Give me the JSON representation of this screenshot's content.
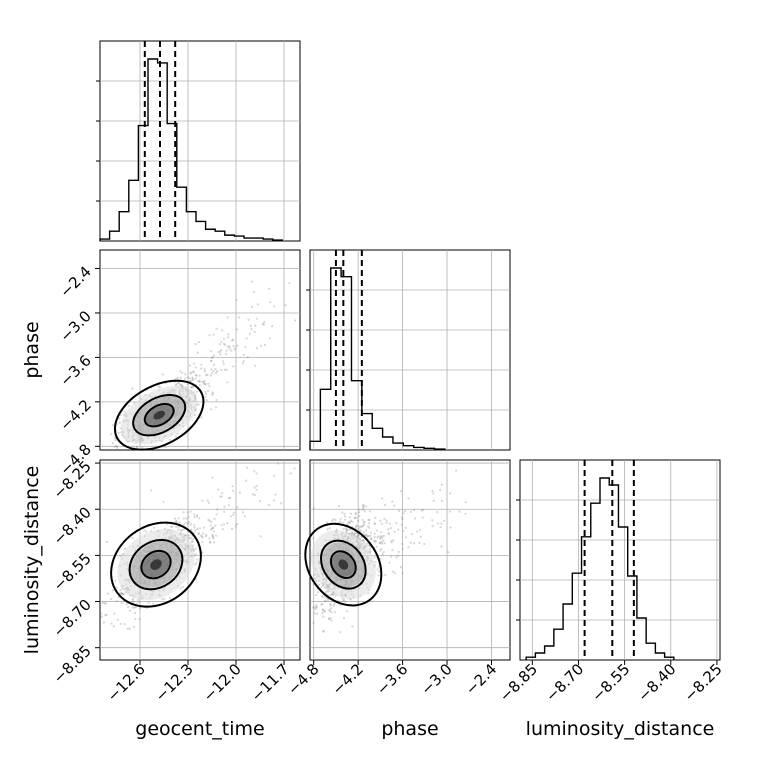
{
  "chart_data": {
    "type": "corner",
    "parameters": [
      "geocent_time",
      "phase",
      "luminosity_distance"
    ],
    "axes": {
      "geocent_time": {
        "range": [
          -12.85,
          -11.6
        ],
        "ticks": [
          -12.6,
          -12.3,
          -12.0,
          -11.7
        ],
        "tick_labels": [
          "−12.6",
          "−12.3",
          "−12.0",
          "−11.7"
        ]
      },
      "phase": {
        "range": [
          -4.85,
          -2.15
        ],
        "ticks": [
          -4.8,
          -4.2,
          -3.6,
          -3.0,
          -2.4
        ],
        "tick_labels": [
          "−4.8",
          "−4.2",
          "−3.6",
          "−3.0",
          "−2.4"
        ]
      },
      "luminosity_distance": {
        "range": [
          -8.89,
          -8.24
        ],
        "ticks": [
          -8.85,
          -8.7,
          -8.55,
          -8.4,
          -8.25
        ],
        "tick_labels": [
          "−8.85",
          "−8.70",
          "−8.55",
          "−8.40",
          "−8.25"
        ]
      }
    },
    "histograms": [
      {
        "parameter": "geocent_time",
        "bin_edges": [
          -12.85,
          -12.79,
          -12.73,
          -12.67,
          -12.61,
          -12.55,
          -12.49,
          -12.43,
          -12.37,
          -12.31,
          -12.25,
          -12.19,
          -12.13,
          -12.07,
          -12.01,
          -11.95,
          -11.89,
          -11.83,
          -11.77,
          -11.71
        ],
        "counts": [
          2,
          10,
          30,
          62,
          118,
          186,
          182,
          120,
          55,
          30,
          20,
          12,
          10,
          6,
          5,
          3,
          3,
          2,
          1
        ],
        "quantiles": [
          -12.57,
          -12.475,
          -12.38
        ]
      },
      {
        "parameter": "phase",
        "bin_edges": [
          -4.85,
          -4.71,
          -4.57,
          -4.43,
          -4.29,
          -4.15,
          -4.01,
          -3.87,
          -3.73,
          -3.59,
          -3.45,
          -3.31,
          -3.17,
          -3.03
        ],
        "counts": [
          10,
          70,
          210,
          200,
          80,
          42,
          25,
          15,
          8,
          5,
          3,
          2,
          1
        ],
        "quantiles": [
          -4.5,
          -4.4,
          -4.15
        ]
      },
      {
        "parameter": "luminosity_distance",
        "bin_edges": [
          -8.87,
          -8.84,
          -8.81,
          -8.78,
          -8.75,
          -8.72,
          -8.69,
          -8.66,
          -8.63,
          -8.6,
          -8.57,
          -8.54,
          -8.51,
          -8.48,
          -8.45,
          -8.42,
          -8.39
        ],
        "counts": [
          2,
          5,
          10,
          22,
          40,
          62,
          88,
          112,
          130,
          125,
          95,
          60,
          30,
          12,
          5,
          2
        ],
        "quantiles": [
          -8.68,
          -8.59,
          -8.52
        ]
      }
    ],
    "scatter_2d": [
      {
        "x": "geocent_time",
        "y": "phase",
        "peak": [
          -12.48,
          -4.38
        ],
        "spread": [
          0.13,
          0.22
        ],
        "correlation": 0.7,
        "tail_toward": [
          -11.8,
          -3.0
        ]
      },
      {
        "x": "geocent_time",
        "y": "luminosity_distance",
        "peak": [
          -12.5,
          -8.58
        ],
        "spread": [
          0.13,
          0.07
        ],
        "correlation": 0.7,
        "tail_toward": [
          -11.9,
          -8.35
        ]
      },
      {
        "x": "phase",
        "y": "luminosity_distance",
        "peak": [
          -4.4,
          -8.58
        ],
        "spread": [
          0.2,
          0.08
        ],
        "correlation": 0.45,
        "tail_toward": [
          -3.0,
          -8.4
        ]
      }
    ],
    "contour_levels": [
      "inner",
      "middle",
      "outer"
    ],
    "grid": true
  }
}
